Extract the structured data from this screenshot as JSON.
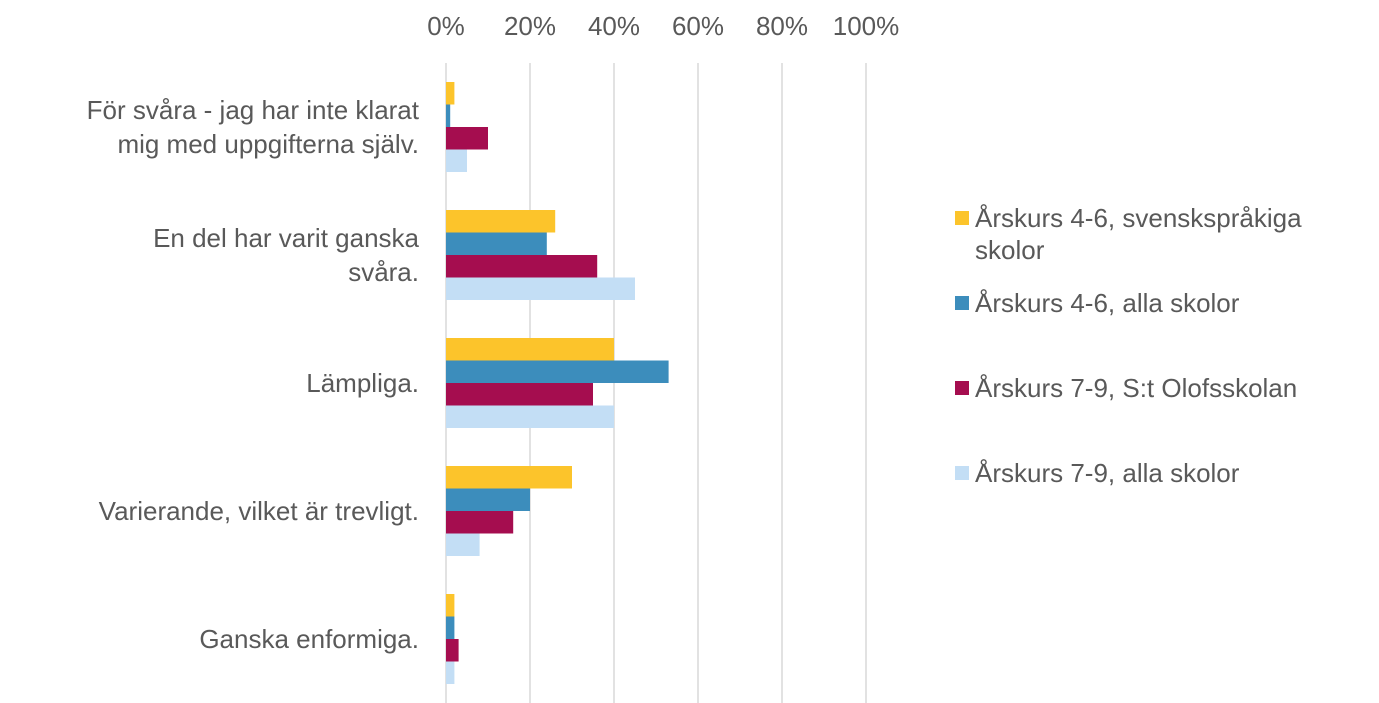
{
  "chart_data": {
    "type": "bar",
    "orientation": "horizontal",
    "categories": [
      "För svåra - jag har inte klarat\nmig med uppgifterna själv.",
      "En del har varit ganska\nsvåra.",
      "Lämpliga.",
      "Varierande, vilket är trevligt.",
      "Ganska enformiga."
    ],
    "series": [
      {
        "name": "Årskurs 4-6, svenskspråkiga skolor",
        "color": "#fcc42b",
        "values": [
          2,
          26,
          40,
          30,
          2
        ]
      },
      {
        "name": "Årskurs 4-6,  alla skolor",
        "color": "#3c8dbc",
        "values": [
          1,
          24,
          53,
          20,
          2
        ]
      },
      {
        "name": "Årskurs 7-9, S:t Olofsskolan",
        "color": "#a50d4f",
        "values": [
          10,
          36,
          35,
          16,
          3
        ]
      },
      {
        "name": "Årskurs 7-9, alla skolor",
        "color": "#c3def5",
        "values": [
          5,
          45,
          40,
          8,
          2
        ]
      }
    ],
    "xlim": [
      0,
      100
    ],
    "xticks": [
      {
        "value": 0,
        "label": "0%"
      },
      {
        "value": 20,
        "label": "20%"
      },
      {
        "value": 40,
        "label": "40%"
      },
      {
        "value": 60,
        "label": "60%"
      },
      {
        "value": 80,
        "label": "80%"
      },
      {
        "value": 100,
        "label": "100%"
      }
    ],
    "grid": true,
    "legend": "right"
  }
}
